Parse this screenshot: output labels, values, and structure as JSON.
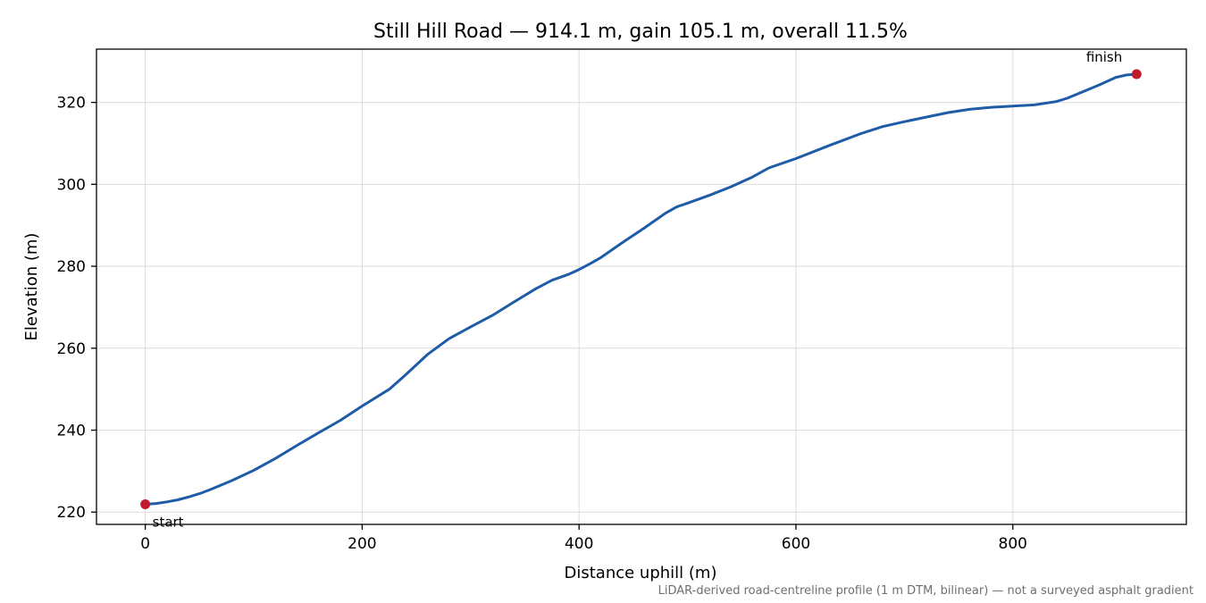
{
  "chart_data": {
    "type": "line",
    "title": "Still Hill Road — 914.1 m, gain 105.1 m, overall 11.5%",
    "xlabel": "Distance uphill (m)",
    "ylabel": "Elevation (m)",
    "caption": "LiDAR-derived road-centreline profile (1 m DTM, bilinear) — not a surveyed asphalt gradient",
    "xlim": [
      -45,
      960
    ],
    "ylim": [
      217,
      333
    ],
    "xticks": [
      0,
      200,
      400,
      600,
      800
    ],
    "yticks": [
      220,
      240,
      260,
      280,
      300,
      320
    ],
    "grid": true,
    "series": [
      {
        "color": "#1f5ca8",
        "x": [
          0,
          10,
          20,
          30,
          40,
          50,
          60,
          80,
          100,
          120,
          140,
          160,
          180,
          200,
          225,
          240,
          260,
          280,
          300,
          320,
          340,
          360,
          375,
          390,
          400,
          410,
          420,
          440,
          460,
          480,
          490,
          500,
          520,
          540,
          560,
          575,
          600,
          630,
          660,
          680,
          700,
          720,
          740,
          760,
          780,
          800,
          820,
          840,
          850,
          860,
          880,
          895,
          905,
          914.1
        ],
        "y": [
          221.9,
          222.1,
          222.5,
          223.0,
          223.7,
          224.5,
          225.5,
          227.7,
          230.2,
          233.1,
          236.3,
          239.4,
          242.4,
          245.9,
          250.0,
          253.5,
          258.4,
          262.3,
          265.2,
          268.0,
          271.3,
          274.5,
          276.6,
          278.0,
          279.2,
          280.6,
          282.1,
          285.8,
          289.3,
          293.0,
          294.5,
          295.4,
          297.3,
          299.4,
          301.8,
          304.0,
          306.3,
          309.4,
          312.4,
          314.1,
          315.3,
          316.4,
          317.5,
          318.3,
          318.8,
          319.1,
          319.4,
          320.2,
          321.0,
          322.1,
          324.3,
          326.1,
          326.7,
          326.9
        ]
      }
    ],
    "annotations": [
      {
        "text": "start",
        "x": 0,
        "y": 221.9
      },
      {
        "text": "finish",
        "x": 914.1,
        "y": 326.9
      }
    ],
    "endpoint_color": "#c11b2b"
  }
}
